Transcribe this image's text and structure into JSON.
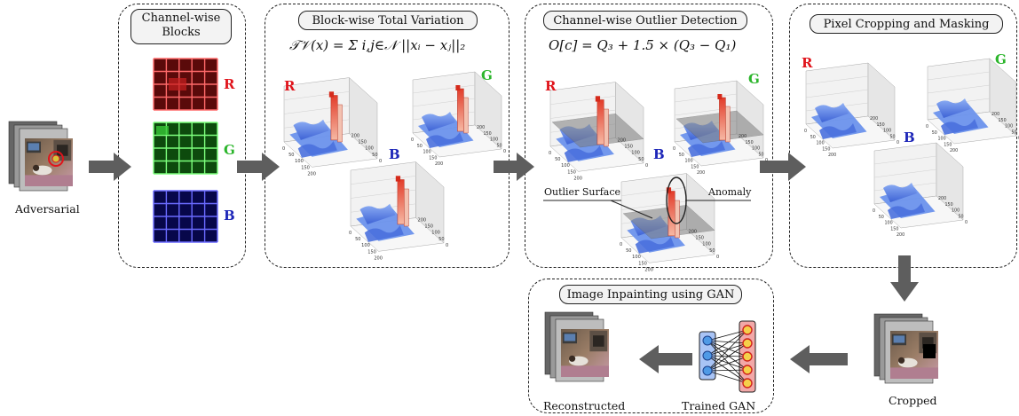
{
  "labels": {
    "adversarial": "Adversarial",
    "cropped": "Cropped",
    "reconstructed": "Reconstructed",
    "trained_gan": "Trained GAN",
    "outlier_surface": "Outlier Surface",
    "anomaly": "Anomaly"
  },
  "stages": {
    "channel_blocks": "Channel-wise\nBlocks",
    "total_variation": "Block-wise Total Variation",
    "outlier_detection": "Channel-wise Outlier Detection",
    "cropping": "Pixel Cropping and Masking",
    "inpainting": "Image Inpainting using GAN"
  },
  "formulas": {
    "tv": "𝒯𝒱(x) = Σ i,j∈𝒩 ||xᵢ − xⱼ||₂",
    "outlier": "O[c] = Q₃ + 1.5 × (Q₃ − Q₁)"
  },
  "channels": {
    "r": "R",
    "g": "G",
    "b": "B"
  },
  "axis_ticks": [
    "0",
    "50",
    "100",
    "150",
    "200"
  ],
  "colors": {
    "r": "#e0141b",
    "g": "#2bb52b",
    "b": "#1c25b8",
    "arrow": "#5e5e5e",
    "surface": "#5b86e8"
  }
}
